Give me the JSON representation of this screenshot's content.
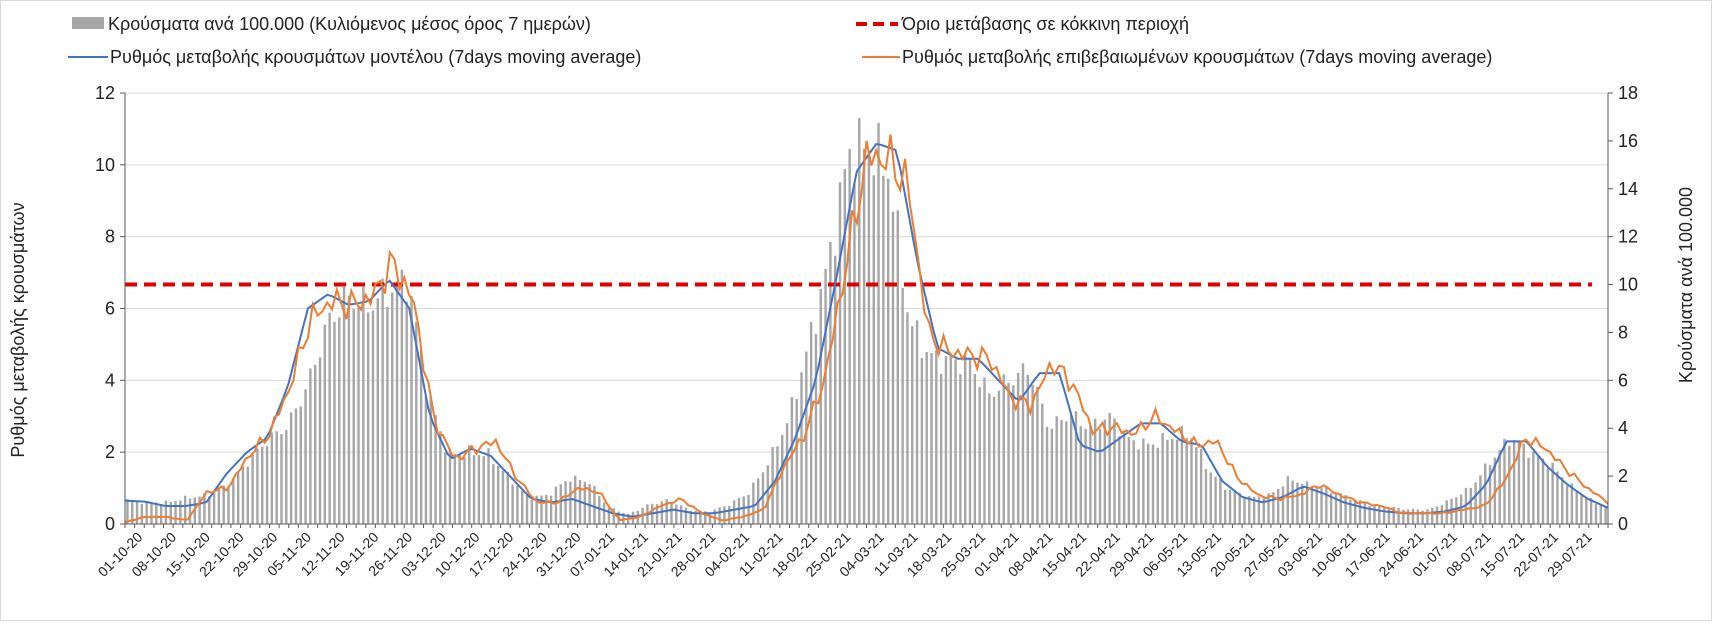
{
  "chart_data": {
    "type": "bar+line",
    "legend": {
      "bars": "Κρούσματα ανά 100.000 (Κυλιόμενος μέσος όρος 7 ημερών)",
      "threshold": "Όριο μετάβασης σε κόκκινη περιοχή",
      "model": "Ρυθμός μεταβολής κρουσμάτων μοντέλου (7days moving average)",
      "confirmed": "Ρυθμός μεταβολής επιβεβαιωμένων κρουσμάτων (7days moving average)"
    },
    "legend_placement": "top",
    "y_left_label": "Ρυθμός μεταβολής κρουσμάτων",
    "y_right_label": "Κρούσματα ανά 100.000",
    "y_left_lim": [
      0,
      12
    ],
    "y_left_ticks": [
      0,
      2,
      4,
      6,
      8,
      10,
      12
    ],
    "y_right_lim": [
      0,
      18
    ],
    "y_right_ticks": [
      0,
      2,
      4,
      6,
      8,
      10,
      12,
      14,
      16,
      18
    ],
    "x_tick_labels": [
      "01-10-20",
      "08-10-20",
      "15-10-20",
      "22-10-20",
      "29-10-20",
      "05-11-20",
      "12-11-20",
      "19-11-20",
      "26-11-20",
      "03-12-20",
      "10-12-20",
      "17-12-20",
      "24-12-20",
      "31-12-20",
      "07-01-21",
      "14-01-21",
      "21-01-21",
      "28-01-21",
      "04-02-21",
      "11-02-21",
      "18-02-21",
      "25-02-21",
      "04-03-21",
      "11-03-21",
      "18-03-21",
      "25-03-21",
      "01-04-21",
      "08-04-21",
      "15-04-21",
      "22-04-21",
      "29-04-21",
      "06-05-21",
      "13-05-21",
      "20-05-21",
      "27-05-21",
      "03-06-21",
      "10-06-21",
      "17-06-21",
      "24-06-21",
      "01-07-21",
      "08-07-21",
      "15-07-21",
      "22-07-21",
      "29-07-21"
    ],
    "x_start_date": "01-10-20",
    "x_end_date": "04-08-21",
    "threshold_value_right_axis": 10,
    "colors": {
      "bars": "#a6a6a6",
      "model": "#4472c4",
      "confirmed": "#ed7d31",
      "threshold": "#e00000"
    },
    "series_cases_per_100k_weekly": [
      1.0,
      0.9,
      0.9,
      1.1,
      1.2,
      1.6,
      2.6,
      3.5,
      4.1,
      5.8,
      8.4,
      9.5,
      9.1,
      9.7,
      10.2,
      5.4,
      2.9,
      3.0,
      2.9,
      2.0,
      1.1,
      1.2,
      1.9,
      1.8,
      0.7,
      0.4,
      0.8,
      1.0,
      0.6,
      0.5,
      0.8,
      1.3,
      2.6,
      4.4,
      7.5,
      11.0,
      15.5,
      15.8,
      14.7,
      8.5,
      7.0,
      6.8,
      6.8,
      5.4,
      6.0,
      6.5,
      4.0,
      4.6,
      4.0,
      4.5,
      3.5,
      3.3,
      3.6,
      3.8,
      2.2,
      1.4,
      1.1,
      1.2,
      1.9,
      1.6,
      1.4,
      1.1,
      0.8,
      0.7,
      0.6,
      0.6,
      1.0,
      1.5,
      2.6,
      3.6,
      3.0,
      2.5,
      1.6,
      1.0,
      0.6
    ],
    "series_model_weekly": [
      0.65,
      0.62,
      0.5,
      0.5,
      0.6,
      1.4,
      2.0,
      2.4,
      3.8,
      6.0,
      6.4,
      6.1,
      6.2,
      6.8,
      6.0,
      3.0,
      1.8,
      2.1,
      1.9,
      1.3,
      0.7,
      0.6,
      0.7,
      0.5,
      0.3,
      0.2,
      0.3,
      0.4,
      0.3,
      0.3,
      0.4,
      0.5,
      1.2,
      2.4,
      4.0,
      6.8,
      9.8,
      10.6,
      10.4,
      7.3,
      4.9,
      4.6,
      4.6,
      4.0,
      3.4,
      4.2,
      4.2,
      2.2,
      2.0,
      2.4,
      2.8,
      2.8,
      2.3,
      2.2,
      1.2,
      0.75,
      0.6,
      0.75,
      1.05,
      0.85,
      0.6,
      0.45,
      0.35,
      0.3,
      0.3,
      0.35,
      0.5,
      1.1,
      2.3,
      2.3,
      1.6,
      1.1,
      0.7,
      0.45
    ],
    "series_confirmed_weekly": [
      0.05,
      0.2,
      0.2,
      0.1,
      0.9,
      1.0,
      1.9,
      2.5,
      3.8,
      5.7,
      6.2,
      6.1,
      6.3,
      7.3,
      6.2,
      2.9,
      1.8,
      2.1,
      2.3,
      1.3,
      0.6,
      0.6,
      1.0,
      0.9,
      0.1,
      0.2,
      0.5,
      0.7,
      0.3,
      0.1,
      0.2,
      0.4,
      1.6,
      2.5,
      4.1,
      7.2,
      10.2,
      10.2,
      9.5,
      5.3,
      4.8,
      4.7,
      4.6,
      3.5,
      3.3,
      4.5,
      3.9,
      2.6,
      2.7,
      2.5,
      3.0,
      2.6,
      2.2,
      2.3,
      1.3,
      0.8,
      0.7,
      0.8,
      1.1,
      0.8,
      0.6,
      0.5,
      0.3,
      0.3,
      0.3,
      0.4,
      0.5,
      1.2,
      2.4,
      2.1,
      1.5,
      1.0,
      0.6
    ]
  }
}
